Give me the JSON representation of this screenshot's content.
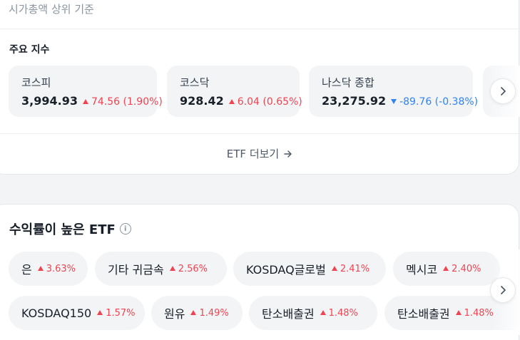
{
  "top_caption": "시가총액 상위 기준",
  "indices_section": {
    "title": "주요 지수",
    "items": [
      {
        "name": "코스피",
        "value": "3,994.93",
        "change": "74.56 (1.90%)",
        "direction": "up"
      },
      {
        "name": "코스닥",
        "value": "928.42",
        "change": "6.04 (0.65%)",
        "direction": "up"
      },
      {
        "name": "나스닥 종합",
        "value": "23,275.92",
        "change": "-89.76 (-0.38%)",
        "direction": "down"
      }
    ]
  },
  "etf_more": {
    "label": "ETF 더보기"
  },
  "high_return": {
    "title": "수익률이 높은 ETF",
    "info_glyph": "i",
    "chips": [
      {
        "name": "은",
        "pct": "3.63%"
      },
      {
        "name": "기타 귀금속",
        "pct": "2.56%"
      },
      {
        "name": "KOSDAQ글로벌",
        "pct": "2.41%"
      },
      {
        "name": "멕시코",
        "pct": "2.40%"
      },
      {
        "name": "KOSDAQ150",
        "pct": "1.57%"
      },
      {
        "name": "원유",
        "pct": "1.49%"
      },
      {
        "name": "탄소배출권",
        "pct": "1.48%"
      },
      {
        "name": "탄소배출권",
        "pct": "1.48%"
      }
    ]
  },
  "colors": {
    "up": "#f04452",
    "down": "#3182f6",
    "chip_bg": "#f2f4f6"
  },
  "icons": {
    "next": "chevron-right-icon",
    "more_arrow": "arrow-right-icon",
    "info": "info-icon"
  }
}
